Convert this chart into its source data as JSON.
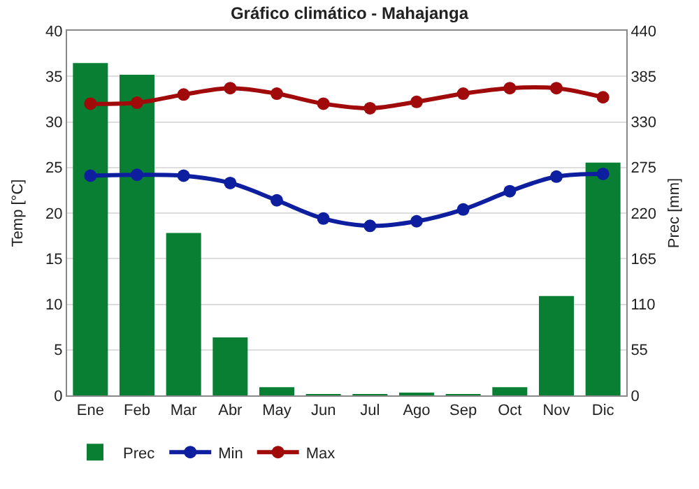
{
  "chart_data": {
    "type": "line",
    "title": "Gráfico climático - Mahajanga",
    "categories": [
      "Ene",
      "Feb",
      "Mar",
      "Abr",
      "May",
      "Jun",
      "Jul",
      "Ago",
      "Sep",
      "Oct",
      "Nov",
      "Dic"
    ],
    "series": [
      {
        "name": "Prec",
        "type": "bar",
        "axis": "y2",
        "color": "#087f33",
        "values": [
          401,
          387,
          196,
          70,
          10,
          1,
          1,
          3,
          1,
          10,
          120,
          281
        ]
      },
      {
        "name": "Min",
        "color": "#0d1f9e",
        "values": [
          24.1,
          24.2,
          24.1,
          23.3,
          21.4,
          19.4,
          18.6,
          19.1,
          20.4,
          22.4,
          24.0,
          24.3
        ]
      },
      {
        "name": "Max",
        "color": "#a00a0a",
        "values": [
          32.0,
          32.1,
          33.0,
          33.7,
          33.1,
          32.0,
          31.5,
          32.2,
          33.1,
          33.7,
          33.7,
          32.7
        ]
      }
    ],
    "ylabel": "Temp [°C]",
    "y2label": "Prec [mm]",
    "ylim": [
      0,
      40
    ],
    "yticks": [
      0,
      5,
      10,
      15,
      20,
      25,
      30,
      35,
      40
    ],
    "y2lim": [
      0,
      440
    ],
    "y2ticks": [
      0,
      55,
      110,
      165,
      220,
      275,
      330,
      385,
      440
    ],
    "grid": "y",
    "legend": "bottom left",
    "marker": "circle",
    "line_style": "solid"
  }
}
